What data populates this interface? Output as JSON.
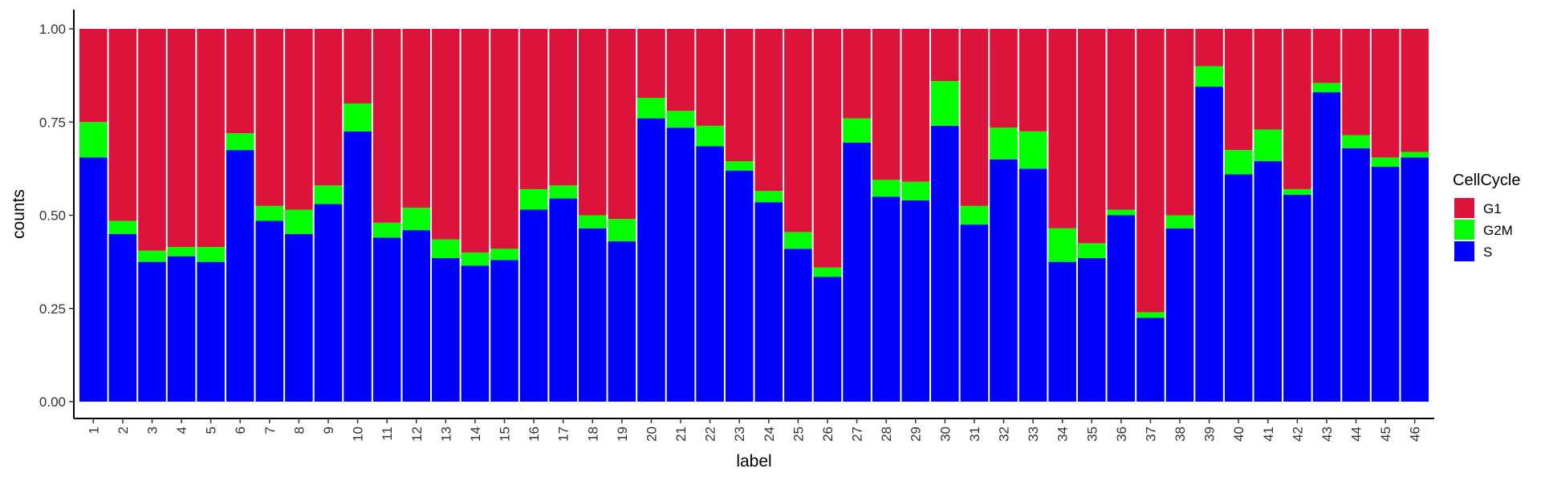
{
  "chart_data": {
    "type": "bar",
    "stacked": true,
    "title": "",
    "xlabel": "label",
    "ylabel": "counts",
    "ylim": [
      0,
      1
    ],
    "yticks": [
      "0.00",
      "0.25",
      "0.50",
      "0.75",
      "1.00"
    ],
    "grid": false,
    "legend": {
      "title": "CellCycle",
      "position": "right"
    },
    "categories": [
      "1",
      "2",
      "3",
      "4",
      "5",
      "6",
      "7",
      "8",
      "9",
      "10",
      "11",
      "12",
      "13",
      "14",
      "15",
      "16",
      "17",
      "18",
      "19",
      "20",
      "21",
      "22",
      "23",
      "24",
      "25",
      "26",
      "27",
      "28",
      "29",
      "30",
      "31",
      "32",
      "33",
      "34",
      "35",
      "36",
      "37",
      "38",
      "39",
      "40",
      "41",
      "42",
      "43",
      "44",
      "45",
      "46"
    ],
    "series": [
      {
        "name": "S",
        "color": "#0000FF",
        "values": [
          0.655,
          0.45,
          0.375,
          0.39,
          0.375,
          0.675,
          0.485,
          0.45,
          0.53,
          0.725,
          0.44,
          0.46,
          0.385,
          0.365,
          0.38,
          0.515,
          0.545,
          0.465,
          0.43,
          0.76,
          0.735,
          0.685,
          0.62,
          0.535,
          0.41,
          0.335,
          0.695,
          0.55,
          0.54,
          0.74,
          0.475,
          0.65,
          0.625,
          0.375,
          0.385,
          0.5,
          0.225,
          0.465,
          0.845,
          0.61,
          0.645,
          0.555,
          0.83,
          0.68,
          0.63,
          0.655
        ]
      },
      {
        "name": "G2M",
        "color": "#00FF00",
        "values": [
          0.095,
          0.035,
          0.03,
          0.025,
          0.04,
          0.045,
          0.04,
          0.065,
          0.05,
          0.075,
          0.04,
          0.06,
          0.05,
          0.035,
          0.03,
          0.055,
          0.035,
          0.035,
          0.06,
          0.055,
          0.045,
          0.055,
          0.025,
          0.03,
          0.045,
          0.025,
          0.065,
          0.045,
          0.05,
          0.12,
          0.05,
          0.085,
          0.1,
          0.09,
          0.04,
          0.015,
          0.015,
          0.035,
          0.055,
          0.065,
          0.085,
          0.015,
          0.025,
          0.035,
          0.025,
          0.015
        ]
      },
      {
        "name": "G1",
        "color": "#DC143C",
        "values": [
          0.25,
          0.515,
          0.595,
          0.585,
          0.585,
          0.28,
          0.475,
          0.485,
          0.42,
          0.2,
          0.52,
          0.48,
          0.565,
          0.6,
          0.59,
          0.43,
          0.42,
          0.5,
          0.51,
          0.185,
          0.22,
          0.26,
          0.355,
          0.435,
          0.545,
          0.64,
          0.24,
          0.405,
          0.41,
          0.14,
          0.475,
          0.265,
          0.275,
          0.535,
          0.575,
          0.485,
          0.76,
          0.5,
          0.1,
          0.325,
          0.27,
          0.43,
          0.145,
          0.285,
          0.345,
          0.33
        ]
      }
    ],
    "legend_order": [
      "G1",
      "G2M",
      "S"
    ]
  }
}
